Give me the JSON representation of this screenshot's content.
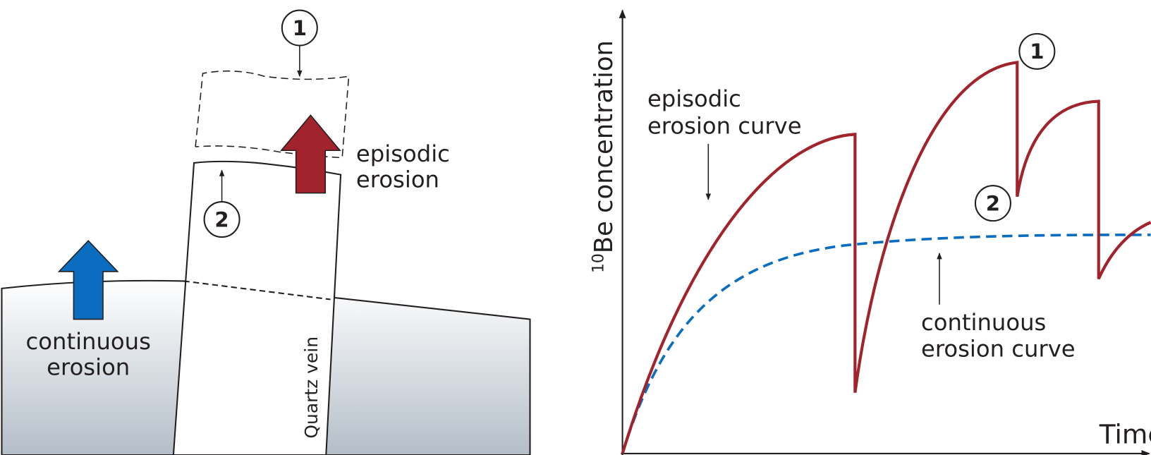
{
  "left_panel": {
    "markers": [
      "1",
      "2"
    ],
    "episodic_label": [
      "episodic",
      "erosion"
    ],
    "continuous_label": [
      "continuous",
      "erosion"
    ],
    "vein_label": "Quartz vein"
  },
  "right_panel": {
    "y_axis": {
      "superscript": "10",
      "label": "Be concentration"
    },
    "x_axis": "Time",
    "episodic_label": [
      "episodic",
      "erosion curve"
    ],
    "continuous_label": [
      "continuous",
      "erosion curve"
    ],
    "markers": [
      "1",
      "2"
    ]
  }
}
